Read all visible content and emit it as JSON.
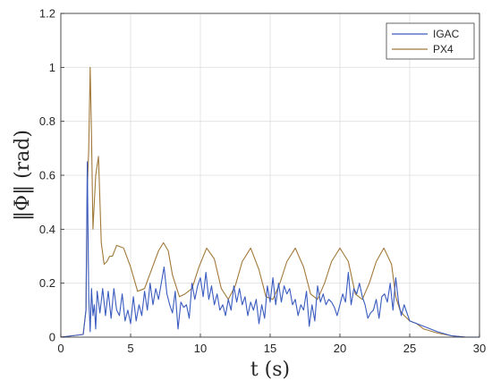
{
  "chart_data": {
    "type": "line",
    "title": "",
    "xlabel": "t (s)",
    "ylabel": "‖Φ‖ (rad)",
    "xlim": [
      0,
      30
    ],
    "ylim": [
      0,
      1.2
    ],
    "xticks": [
      0,
      5,
      10,
      15,
      20,
      25,
      30
    ],
    "yticks": [
      0,
      0.2,
      0.4,
      0.6,
      0.8,
      1,
      1.2
    ],
    "xtick_labels": [
      "0",
      "5",
      "10",
      "15",
      "20",
      "25",
      "30"
    ],
    "ytick_labels": [
      "0",
      "0.2",
      "0.4",
      "0.6",
      "0.8",
      "1",
      "1.2"
    ],
    "grid": true,
    "legend_position": "top-right",
    "series": [
      {
        "name": "IGAC",
        "color": "#3a5bbf",
        "x": [
          0,
          1.6,
          1.8,
          1.9,
          2.0,
          2.1,
          2.2,
          2.3,
          2.4,
          2.5,
          2.6,
          2.8,
          3.0,
          3.2,
          3.4,
          3.6,
          3.8,
          4.0,
          4.2,
          4.4,
          4.6,
          4.8,
          5.0,
          5.2,
          5.4,
          5.6,
          5.8,
          6.0,
          6.2,
          6.4,
          6.6,
          6.8,
          7.0,
          7.2,
          7.4,
          7.6,
          7.8,
          8.0,
          8.2,
          8.4,
          8.6,
          8.8,
          9.0,
          9.2,
          9.4,
          9.6,
          9.8,
          10.0,
          10.2,
          10.4,
          10.6,
          10.8,
          11.0,
          11.2,
          11.4,
          11.6,
          11.8,
          12.0,
          12.2,
          12.4,
          12.6,
          12.8,
          13.0,
          13.2,
          13.4,
          13.6,
          13.8,
          14.0,
          14.2,
          14.4,
          14.6,
          14.8,
          15.0,
          15.2,
          15.4,
          15.6,
          15.8,
          16.0,
          16.2,
          16.4,
          16.6,
          16.8,
          17.0,
          17.2,
          17.4,
          17.6,
          17.8,
          18.0,
          18.2,
          18.4,
          18.6,
          18.8,
          19.0,
          19.2,
          19.4,
          19.6,
          19.8,
          20.0,
          20.2,
          20.4,
          20.6,
          20.8,
          21.0,
          21.2,
          21.4,
          21.6,
          21.8,
          22.0,
          22.2,
          22.4,
          22.6,
          22.8,
          23.0,
          23.2,
          23.4,
          23.6,
          23.8,
          24.0,
          24.2,
          24.4,
          24.6,
          25.0,
          25.5,
          26.0,
          27.0,
          28.0,
          29.0,
          30.0
        ],
        "values": [
          0,
          0.01,
          0.1,
          0.65,
          0.15,
          0.02,
          0.18,
          0.08,
          0.12,
          0.03,
          0.17,
          0.09,
          0.18,
          0.08,
          0.17,
          0.07,
          0.18,
          0.1,
          0.08,
          0.16,
          0.06,
          0.1,
          0.05,
          0.15,
          0.06,
          0.12,
          0.08,
          0.17,
          0.1,
          0.2,
          0.12,
          0.18,
          0.14,
          0.2,
          0.26,
          0.16,
          0.12,
          0.09,
          0.17,
          0.03,
          0.13,
          0.11,
          0.12,
          0.07,
          0.2,
          0.14,
          0.19,
          0.22,
          0.15,
          0.24,
          0.14,
          0.19,
          0.12,
          0.16,
          0.1,
          0.12,
          0.08,
          0.14,
          0.1,
          0.19,
          0.13,
          0.18,
          0.12,
          0.15,
          0.08,
          0.13,
          0.1,
          0.14,
          0.05,
          0.12,
          0.07,
          0.19,
          0.13,
          0.22,
          0.12,
          0.2,
          0.13,
          0.19,
          0.16,
          0.18,
          0.12,
          0.14,
          0.08,
          0.12,
          0.1,
          0.17,
          0.04,
          0.12,
          0.06,
          0.19,
          0.13,
          0.16,
          0.12,
          0.14,
          0.13,
          0.11,
          0.08,
          0.12,
          0.16,
          0.13,
          0.24,
          0.12,
          0.18,
          0.16,
          0.2,
          0.15,
          0.12,
          0.07,
          0.09,
          0.1,
          0.14,
          0.07,
          0.15,
          0.16,
          0.13,
          0.2,
          0.1,
          0.22,
          0.13,
          0.08,
          0.12,
          0.06,
          0.05,
          0.04,
          0.02,
          0.005,
          0,
          0
        ]
      },
      {
        "name": "PX4",
        "color": "#a2793a",
        "x": [
          0,
          1.6,
          1.8,
          1.9,
          2.0,
          2.1,
          2.2,
          2.3,
          2.5,
          2.7,
          2.9,
          3.1,
          3.3,
          3.5,
          3.7,
          4.0,
          4.5,
          5.0,
          5.5,
          6.0,
          6.5,
          7.0,
          7.35,
          7.7,
          8.0,
          8.5,
          8.9,
          9.4,
          9.9,
          10.45,
          11.0,
          11.5,
          12.0,
          12.5,
          13.0,
          13.6,
          14.2,
          14.7,
          15.2,
          15.7,
          16.2,
          16.8,
          17.4,
          17.9,
          18.4,
          18.9,
          19.4,
          20.0,
          20.6,
          21.1,
          21.6,
          22.1,
          22.6,
          23.15,
          23.7,
          24.0,
          24.3,
          24.6,
          25.0,
          25.5,
          26.0,
          27.0,
          28.0,
          29.0,
          30.0
        ],
        "values": [
          0,
          0.01,
          0.1,
          0.55,
          0.7,
          1.0,
          0.75,
          0.4,
          0.6,
          0.67,
          0.35,
          0.27,
          0.28,
          0.3,
          0.3,
          0.34,
          0.33,
          0.26,
          0.17,
          0.18,
          0.25,
          0.32,
          0.35,
          0.32,
          0.23,
          0.15,
          0.16,
          0.18,
          0.26,
          0.33,
          0.29,
          0.18,
          0.14,
          0.19,
          0.28,
          0.33,
          0.25,
          0.15,
          0.14,
          0.2,
          0.28,
          0.33,
          0.26,
          0.16,
          0.14,
          0.2,
          0.28,
          0.33,
          0.28,
          0.16,
          0.14,
          0.2,
          0.28,
          0.33,
          0.27,
          0.15,
          0.1,
          0.08,
          0.06,
          0.05,
          0.03,
          0.015,
          0.005,
          0,
          0
        ]
      }
    ]
  }
}
